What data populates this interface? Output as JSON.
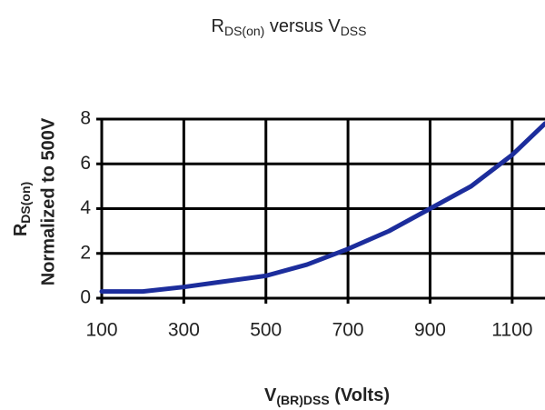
{
  "chart_data": {
    "type": "line",
    "title": [
      "R",
      "DS(on)",
      " versus V",
      "DSS"
    ],
    "x_label": [
      "V",
      "(BR)DSS",
      " (Volts)"
    ],
    "y_label": [
      "R",
      "DS(on)"
    ],
    "y_label_line2": "Normalized to 500V",
    "x": [
      100,
      200,
      300,
      400,
      500,
      600,
      700,
      800,
      900,
      1000,
      1100,
      1180
    ],
    "series": [
      {
        "color": "#1c2d9c",
        "values": [
          0.3,
          0.3,
          0.5,
          0.75,
          1.0,
          1.5,
          2.2,
          3.0,
          4.0,
          5.0,
          6.4,
          7.8
        ]
      }
    ],
    "xlim": [
      100,
      1180
    ],
    "xticks": [
      100,
      300,
      500,
      700,
      900,
      1100
    ],
    "ylim": [
      0,
      8
    ],
    "yticks": [
      0,
      2,
      4,
      6,
      8
    ],
    "grid": true
  }
}
